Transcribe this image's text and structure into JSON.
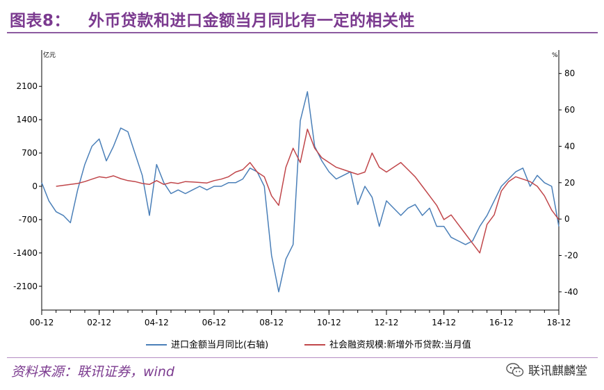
{
  "header": {
    "figure_no": "图表8：",
    "title": "外币贷款和进口金额当月同比有一定的相关性"
  },
  "footer": {
    "source": "资料来源：联讯证券，wind",
    "brand": "联讯麒麟堂",
    "brand_icon": "wechat-icon"
  },
  "colors": {
    "accent": "#7b3a8f",
    "series_blue": "#4a7fb8",
    "series_red": "#c0464a"
  },
  "chart_data": {
    "type": "line",
    "x_ticks": [
      "00-12",
      "02-12",
      "04-12",
      "06-12",
      "08-12",
      "10-12",
      "12-12",
      "14-12",
      "16-12",
      "18-12"
    ],
    "x_range": [
      "2000-12",
      "2018-12"
    ],
    "y_left": {
      "unit": "亿元",
      "ticks": [
        -2100,
        -1400,
        -700,
        0,
        700,
        1400,
        2100
      ],
      "range": [
        -2600,
        2600
      ]
    },
    "y_right": {
      "unit": "%",
      "ticks": [
        -40,
        -20,
        0,
        20,
        40,
        60,
        80
      ],
      "range": [
        -50,
        86
      ]
    },
    "grid": false,
    "legend_position": "bottom",
    "series": [
      {
        "name": "进口金额当月同比(右轴)",
        "axis": "right",
        "color": "#4a7fb8",
        "x": [
          "2000-12",
          "2001-03",
          "2001-06",
          "2001-09",
          "2001-12",
          "2002-03",
          "2002-06",
          "2002-09",
          "2002-12",
          "2003-03",
          "2003-06",
          "2003-09",
          "2003-12",
          "2004-03",
          "2004-06",
          "2004-09",
          "2004-12",
          "2005-03",
          "2005-06",
          "2005-09",
          "2005-12",
          "2006-03",
          "2006-06",
          "2006-09",
          "2006-12",
          "2007-03",
          "2007-06",
          "2007-09",
          "2007-12",
          "2008-03",
          "2008-06",
          "2008-09",
          "2008-12",
          "2009-03",
          "2009-06",
          "2009-09",
          "2009-12",
          "2010-03",
          "2010-06",
          "2010-09",
          "2010-12",
          "2011-03",
          "2011-06",
          "2011-09",
          "2011-12",
          "2012-03",
          "2012-06",
          "2012-09",
          "2012-12",
          "2013-03",
          "2013-06",
          "2013-09",
          "2013-12",
          "2014-03",
          "2014-06",
          "2014-09",
          "2014-12",
          "2015-03",
          "2015-06",
          "2015-09",
          "2015-12",
          "2016-03",
          "2016-06",
          "2016-09",
          "2016-12",
          "2017-03",
          "2017-06",
          "2017-09",
          "2017-12",
          "2018-03",
          "2018-06",
          "2018-09",
          "2018-12"
        ],
        "y": [
          20,
          10,
          4,
          2,
          -2,
          16,
          30,
          40,
          44,
          32,
          40,
          50,
          48,
          36,
          24,
          2,
          30,
          20,
          14,
          16,
          14,
          16,
          18,
          16,
          18,
          18,
          20,
          20,
          22,
          28,
          26,
          18,
          -20,
          -40,
          -22,
          -14,
          54,
          70,
          40,
          32,
          26,
          22,
          24,
          26,
          8,
          18,
          12,
          -4,
          10,
          6,
          2,
          6,
          8,
          2,
          6,
          -4,
          -4,
          -10,
          -12,
          -14,
          -12,
          -4,
          2,
          10,
          18,
          22,
          26,
          28,
          18,
          24,
          20,
          18,
          -4
        ]
      },
      {
        "name": "社会融资规模:新增外币贷款:当月值",
        "axis": "left",
        "color": "#c0464a",
        "x": [
          "2001-06",
          "2001-09",
          "2001-12",
          "2002-03",
          "2002-06",
          "2002-09",
          "2002-12",
          "2003-03",
          "2003-06",
          "2003-09",
          "2003-12",
          "2004-03",
          "2004-06",
          "2004-09",
          "2004-12",
          "2005-03",
          "2005-06",
          "2005-09",
          "2005-12",
          "2006-03",
          "2006-06",
          "2006-09",
          "2006-12",
          "2007-03",
          "2007-06",
          "2007-09",
          "2007-12",
          "2008-03",
          "2008-06",
          "2008-09",
          "2008-12",
          "2009-03",
          "2009-06",
          "2009-09",
          "2009-12",
          "2010-03",
          "2010-06",
          "2010-09",
          "2010-12",
          "2011-03",
          "2011-06",
          "2011-09",
          "2011-12",
          "2012-03",
          "2012-06",
          "2012-09",
          "2012-12",
          "2013-03",
          "2013-06",
          "2013-09",
          "2013-12",
          "2014-03",
          "2014-06",
          "2014-09",
          "2014-12",
          "2015-03",
          "2015-06",
          "2015-09",
          "2015-12",
          "2016-03",
          "2016-06",
          "2016-09",
          "2016-12",
          "2017-03",
          "2017-06",
          "2017-09",
          "2017-12",
          "2018-03",
          "2018-06",
          "2018-09",
          "2018-12"
        ],
        "y": [
          0,
          20,
          40,
          60,
          100,
          150,
          200,
          180,
          220,
          160,
          120,
          100,
          60,
          40,
          120,
          40,
          80,
          60,
          100,
          90,
          80,
          70,
          120,
          150,
          200,
          300,
          350,
          500,
          300,
          200,
          -200,
          -400,
          400,
          800,
          500,
          1200,
          800,
          600,
          500,
          400,
          350,
          300,
          250,
          300,
          700,
          400,
          300,
          400,
          500,
          350,
          200,
          0,
          -200,
          -400,
          -700,
          -600,
          -800,
          -1000,
          -1200,
          -1400,
          -800,
          -600,
          -100,
          100,
          200,
          150,
          100,
          0,
          -200,
          -500,
          -700
        ]
      }
    ]
  }
}
